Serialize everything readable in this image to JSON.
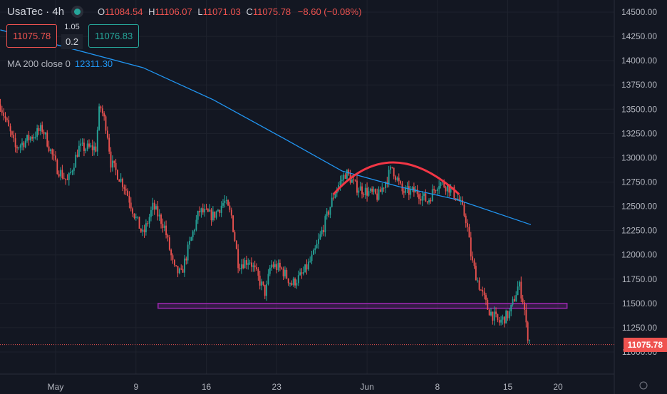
{
  "header": {
    "symbol": "UsaTec · 4h",
    "open": "11084.54",
    "high": "11106.07",
    "low": "11071.03",
    "close": "11075.78",
    "change": "−8.60 (−0.08%)",
    "o": "O",
    "h": "H",
    "l": "L",
    "c": "C"
  },
  "trade": {
    "sell": "11075.78",
    "buy": "11076.83",
    "spread_top": "1.05",
    "spread": "0.2"
  },
  "indicator": {
    "label": "MA 200 close 0",
    "value": "12311.30"
  },
  "last_price": "11075.78",
  "colors": {
    "up": "#26a69a",
    "down": "#ef5350",
    "ma": "#2196f3",
    "zone": "#9c27b0",
    "arc": "#f23645"
  },
  "chart_data": {
    "type": "candlestick",
    "title": "UsaTec · 4h",
    "y_ticks": [
      "14500.00",
      "14250.00",
      "14000.00",
      "13750.00",
      "13500.00",
      "13250.00",
      "13000.00",
      "12750.00",
      "12500.00",
      "12250.00",
      "12000.00",
      "11750.00",
      "11500.00",
      "11250.00",
      "11000.00"
    ],
    "ylim": [
      10900,
      14600
    ],
    "x_ticks": [
      {
        "label": "May",
        "day": 0
      },
      {
        "label": "9",
        "day": 8
      },
      {
        "label": "16",
        "day": 15
      },
      {
        "label": "23",
        "day": 22
      },
      {
        "label": "Jun",
        "day": 31
      },
      {
        "label": "8",
        "day": 38
      },
      {
        "label": "15",
        "day": 45
      },
      {
        "label": "20",
        "day": 50
      }
    ],
    "xlim_days": [
      -5.5,
      55.5
    ],
    "close_path_days_from_may1": [
      [
        -5.5,
        13550
      ],
      [
        -4,
        13100
      ],
      [
        -1.3,
        13300
      ],
      [
        0.1,
        12900
      ],
      [
        1.2,
        12750
      ],
      [
        2.3,
        13100
      ],
      [
        4,
        13100
      ],
      [
        4.4,
        13550
      ],
      [
        5.1,
        13300
      ],
      [
        5.5,
        12950
      ],
      [
        6.9,
        12700
      ],
      [
        7.9,
        12400
      ],
      [
        8.7,
        12200
      ],
      [
        9.7,
        12500
      ],
      [
        10.8,
        12300
      ],
      [
        11.8,
        11850
      ],
      [
        12.5,
        11800
      ],
      [
        13.3,
        12100
      ],
      [
        14.3,
        12450
      ],
      [
        15.7,
        12400
      ],
      [
        16.8,
        12550
      ],
      [
        17.5,
        12400
      ],
      [
        18.2,
        11900
      ],
      [
        19.3,
        11950
      ],
      [
        20.9,
        11600
      ],
      [
        21.4,
        11900
      ],
      [
        22.5,
        11850
      ],
      [
        23.5,
        11700
      ],
      [
        24.6,
        11800
      ],
      [
        25.7,
        12000
      ],
      [
        26.7,
        12300
      ],
      [
        27.8,
        12650
      ],
      [
        28.9,
        12850
      ],
      [
        29.9,
        12700
      ],
      [
        31,
        12650
      ],
      [
        32.1,
        12600
      ],
      [
        33.5,
        12900
      ],
      [
        34.5,
        12650
      ],
      [
        36,
        12650
      ],
      [
        37,
        12550
      ],
      [
        38.1,
        12750
      ],
      [
        39.1,
        12700
      ],
      [
        40.2,
        12550
      ],
      [
        40.9,
        12350
      ],
      [
        41.4,
        11950
      ],
      [
        42.1,
        11700
      ],
      [
        43,
        11450
      ],
      [
        44.1,
        11300
      ],
      [
        45.2,
        11400
      ],
      [
        46.1,
        11700
      ],
      [
        46.6,
        11500
      ],
      [
        46.9,
        11200
      ],
      [
        47.3,
        11076
      ]
    ],
    "ma200_path": [
      [
        -5.5,
        14317
      ],
      [
        8.7,
        13928
      ],
      [
        15.7,
        13597
      ],
      [
        22.8,
        13194
      ],
      [
        28.5,
        12864
      ],
      [
        34.2,
        12702
      ],
      [
        39.9,
        12570
      ],
      [
        47.3,
        12311
      ]
    ],
    "support_zone": {
      "from": 11450,
      "to": 11500,
      "start_day": 10.2,
      "end_day": 50.9
    },
    "arc": {
      "start": [
        27.7,
        12629
      ],
      "peak": [
        33.6,
        12952
      ],
      "end": [
        40.1,
        12629
      ]
    },
    "last_price": 11075.78
  }
}
